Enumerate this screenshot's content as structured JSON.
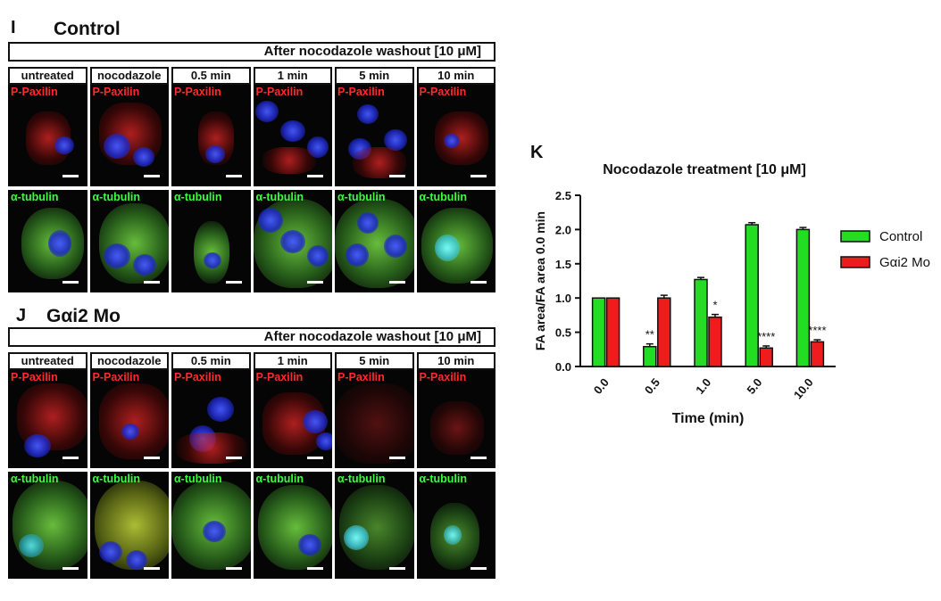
{
  "panels": {
    "I": {
      "letter": "I",
      "title": "Control"
    },
    "J": {
      "letter": "J",
      "title": "Gαi2 Mo"
    },
    "K": {
      "letter": "K"
    }
  },
  "micrograph": {
    "header": "After nocodazole washout [10 μM]",
    "columns": [
      "untreated",
      "nocodazole",
      "0.5 min",
      "1 min",
      "5 min",
      "10 min"
    ],
    "row_labels": {
      "top": "P-Paxilin",
      "bottom": "α-tubulin"
    },
    "colors": {
      "paxilin": "#ff2a2a",
      "tubulin": "#3cff3c",
      "nuclei": "#2b3cff"
    }
  },
  "chart_data": {
    "type": "bar",
    "title": "Nocodazole treatment [10 μM]",
    "xlabel": "Time (min)",
    "ylabel": "FA area/FA area 0.0 min",
    "categories": [
      "0.0",
      "0.5",
      "1.0",
      "5.0",
      "10.0"
    ],
    "ylim": [
      0,
      2.5
    ],
    "yticks": [
      "0.0",
      "0.5",
      "1.0",
      "1.5",
      "2.0",
      "2.5"
    ],
    "series": [
      {
        "name": "Control",
        "color": "#22dd22",
        "values": [
          1.0,
          0.29,
          1.27,
          2.07,
          2.0
        ],
        "errors": [
          0.0,
          0.04,
          0.03,
          0.03,
          0.03
        ]
      },
      {
        "name": "Gαi2 Mo",
        "color": "#ee1c1c",
        "values": [
          1.0,
          1.0,
          0.72,
          0.27,
          0.36
        ],
        "errors": [
          0.0,
          0.04,
          0.04,
          0.03,
          0.03
        ]
      }
    ],
    "annotations": [
      {
        "category": "0.5",
        "series": "Control",
        "text": "**"
      },
      {
        "category": "1.0",
        "series": "Gαi2 Mo",
        "text": "*"
      },
      {
        "category": "5.0",
        "series": "Gαi2 Mo",
        "text": "****"
      },
      {
        "category": "10.0",
        "series": "Gαi2 Mo",
        "text": "****"
      }
    ],
    "legend": "right"
  }
}
